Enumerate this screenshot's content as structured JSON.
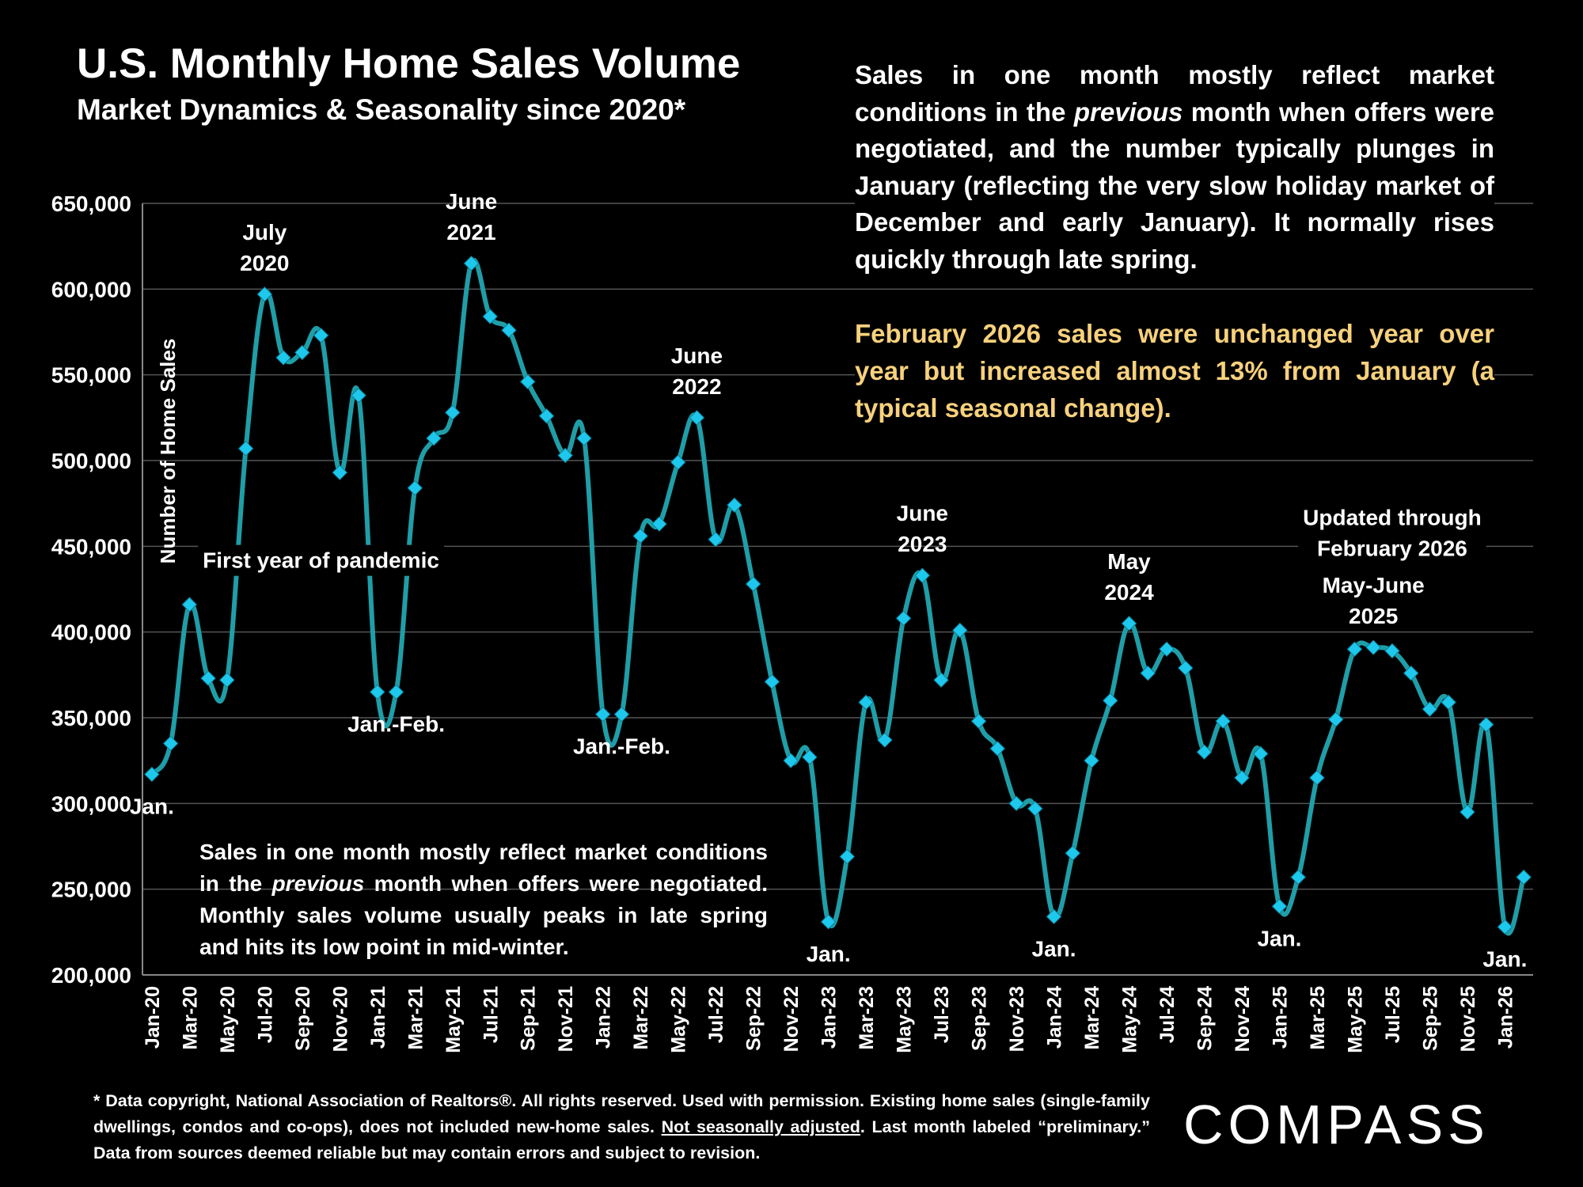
{
  "title": "U.S. Monthly Home Sales Volume",
  "subtitle": "Market Dynamics & Seasonality since 2020*",
  "notes": {
    "top_before": "Sales in one month mostly reflect market conditions in the ",
    "top_italic": "previous",
    "top_after": " month when offers were negotiated, and the number typically plunges in January (reflecting the very slow holiday market of December and early January). It normally rises quickly through late spring.",
    "highlight": "February 2026 sales were unchanged year over year but increased almost 13% from January (a typical seasonal change).",
    "bottom_before": "Sales in one month mostly reflect market conditions in the ",
    "bottom_italic": "previous",
    "bottom_after": " month when offers were negotiated. Monthly sales volume usually peaks in late spring and hits its low point in mid-winter."
  },
  "footer": {
    "before": "* Data copyright, National Association of Realtors®. All rights reserved. Used with permission. Existing home sales (single-family dwellings, condos and co-ops), does not included new-home sales. ",
    "underlined": "Not seasonally adjusted",
    "after": ". Last month labeled “preliminary.” Data from sources deemed reliable but may contain errors and subject to revision."
  },
  "logo": "COMPASS",
  "colors": {
    "background": "#000000",
    "line": "#1f9ea8",
    "marker": "#1ec8ec",
    "highlight_text": "#f7d17c",
    "grid": "#555555"
  },
  "chart_data": {
    "type": "line",
    "title": "U.S. Monthly Home Sales Volume",
    "xlabel": "",
    "ylabel": "Number of Home Sales",
    "ylim": [
      200000,
      650000
    ],
    "yticks": [
      200000,
      250000,
      300000,
      350000,
      400000,
      450000,
      500000,
      550000,
      600000,
      650000
    ],
    "ytick_labels": [
      "200,000",
      "250,000",
      "300,000",
      "350,000",
      "400,000",
      "450,000",
      "500,000",
      "550,000",
      "600,000",
      "650,000"
    ],
    "grid": true,
    "x": [
      "Jan-20",
      "Feb-20",
      "Mar-20",
      "Apr-20",
      "May-20",
      "Jun-20",
      "Jul-20",
      "Aug-20",
      "Sep-20",
      "Oct-20",
      "Nov-20",
      "Dec-20",
      "Jan-21",
      "Feb-21",
      "Mar-21",
      "Apr-21",
      "May-21",
      "Jun-21",
      "Jul-21",
      "Aug-21",
      "Sep-21",
      "Oct-21",
      "Nov-21",
      "Dec-21",
      "Jan-22",
      "Feb-22",
      "Mar-22",
      "Apr-22",
      "May-22",
      "Jun-22",
      "Jul-22",
      "Aug-22",
      "Sep-22",
      "Oct-22",
      "Nov-22",
      "Dec-22",
      "Jan-23",
      "Feb-23",
      "Mar-23",
      "Apr-23",
      "May-23",
      "Jun-23",
      "Jul-23",
      "Aug-23",
      "Sep-23",
      "Oct-23",
      "Nov-23",
      "Dec-23",
      "Jan-24",
      "Feb-24",
      "Mar-24",
      "Apr-24",
      "May-24",
      "Jun-24",
      "Jul-24",
      "Aug-24",
      "Sep-24",
      "Oct-24",
      "Nov-24",
      "Dec-24",
      "Jan-25",
      "Feb-25",
      "Mar-25",
      "Apr-25",
      "May-25",
      "Jun-25",
      "Jul-25",
      "Aug-25",
      "Sep-25",
      "Oct-25",
      "Nov-25",
      "Dec-25",
      "Jan-26",
      "Feb-26"
    ],
    "xtick_labels": [
      "Jan-20",
      "Mar-20",
      "May-20",
      "Jul-20",
      "Sep-20",
      "Nov-20",
      "Jan-21",
      "Mar-21",
      "May-21",
      "Jul-21",
      "Sep-21",
      "Nov-21",
      "Jan-22",
      "Mar-22",
      "May-22",
      "Jul-22",
      "Sep-22",
      "Nov-22",
      "Jan-23",
      "Mar-23",
      "May-23",
      "Jul-23",
      "Sep-23",
      "Nov-23",
      "Jan-24",
      "Mar-24",
      "May-24",
      "Jul-24",
      "Sep-24",
      "Nov-24",
      "Jan-25",
      "Mar-25",
      "May-25",
      "Jul-25",
      "Sep-25",
      "Nov-25",
      "Jan-26"
    ],
    "series": [
      {
        "values": [
          317000,
          335000,
          416000,
          373000,
          372000,
          507000,
          597000,
          560000,
          563000,
          573000,
          493000,
          538000,
          365000,
          365000,
          484000,
          513000,
          528000,
          615000,
          584000,
          576000,
          546000,
          526000,
          503000,
          513000,
          352000,
          352000,
          456000,
          463000,
          499000,
          525000,
          454000,
          474000,
          428000,
          371000,
          325000,
          327000,
          231000,
          269000,
          359000,
          337000,
          408000,
          433000,
          372000,
          401000,
          348000,
          332000,
          300000,
          297000,
          234000,
          271000,
          325000,
          360000,
          405000,
          376000,
          390000,
          379000,
          330000,
          348000,
          315000,
          329000,
          240000,
          257000,
          315000,
          349000,
          390000,
          391000,
          389000,
          376000,
          355000,
          359000,
          295000,
          346000,
          228000,
          257000
        ]
      }
    ],
    "annotations": [
      {
        "lines": [
          "Jan."
        ],
        "at": "Jan-20",
        "value": 317000,
        "place": "below"
      },
      {
        "lines": [
          "July",
          "2020"
        ],
        "at": "Jul-20",
        "value": 597000,
        "place": "above"
      },
      {
        "lines": [
          "First year of pandemic"
        ],
        "at": "Oct-20",
        "value": 442000,
        "place": "center"
      },
      {
        "lines": [
          "Jan.-Feb."
        ],
        "at": "Feb-21",
        "value": 365000,
        "place": "below"
      },
      {
        "lines": [
          "June",
          "2021"
        ],
        "at": "Jun-21",
        "value": 615000,
        "place": "above"
      },
      {
        "lines": [
          "Jan.-Feb."
        ],
        "at": "Feb-22",
        "value": 352000,
        "place": "below"
      },
      {
        "lines": [
          "June",
          "2022"
        ],
        "at": "Jun-22",
        "value": 525000,
        "place": "above"
      },
      {
        "lines": [
          "Jan."
        ],
        "at": "Jan-23",
        "value": 231000,
        "place": "below"
      },
      {
        "lines": [
          "June",
          "2023"
        ],
        "at": "Jun-23",
        "value": 433000,
        "place": "above"
      },
      {
        "lines": [
          "Jan."
        ],
        "at": "Jan-24",
        "value": 234000,
        "place": "below"
      },
      {
        "lines": [
          "May",
          "2024"
        ],
        "at": "May-24",
        "value": 405000,
        "place": "above"
      },
      {
        "lines": [
          "Updated through",
          "February 2026"
        ],
        "at": "Jul-25",
        "value": 458000,
        "place": "center"
      },
      {
        "lines": [
          "May-June",
          "2025"
        ],
        "at": "Jun-25",
        "value": 391000,
        "place": "above"
      },
      {
        "lines": [
          "Jan."
        ],
        "at": "Jan-25",
        "value": 240000,
        "place": "below"
      },
      {
        "lines": [
          "Jan."
        ],
        "at": "Jan-26",
        "value": 228000,
        "place": "below"
      }
    ]
  }
}
